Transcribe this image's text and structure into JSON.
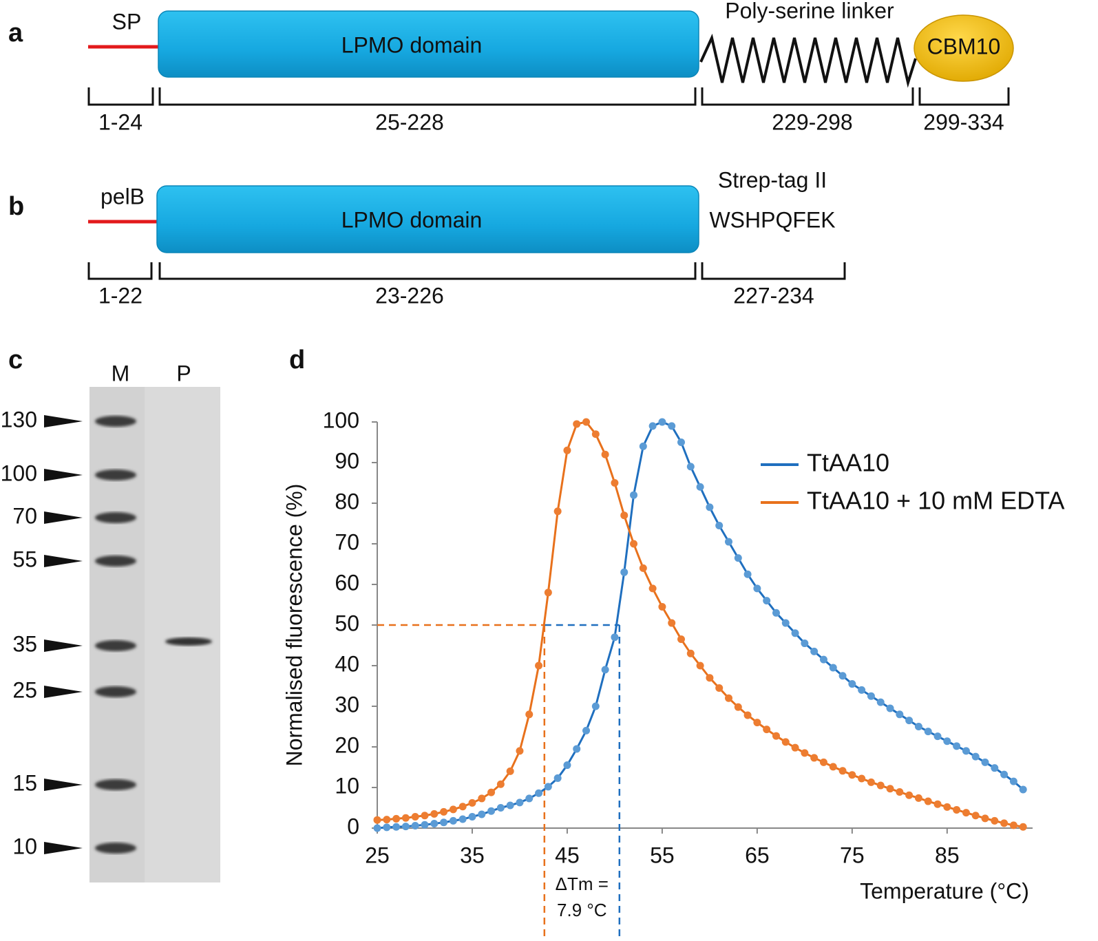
{
  "panel_a": {
    "label": "a",
    "signal": "SP",
    "domain": "LPMO domain",
    "linker": "Poly-serine linker",
    "module": "CBM10",
    "ranges": [
      "1-24",
      "25-228",
      "229-298",
      "299-334"
    ]
  },
  "panel_b": {
    "label": "b",
    "signal": "pelB",
    "domain": "LPMO domain",
    "tag": "Strep-tag II",
    "sequence": "WSHPQFEK",
    "ranges": [
      "1-22",
      "23-226",
      "227-234"
    ]
  },
  "panel_c": {
    "label": "c",
    "lanes": [
      "M",
      "P"
    ],
    "markers": [
      130,
      100,
      70,
      55,
      35,
      25,
      15,
      10
    ]
  },
  "panel_d": {
    "label": "d"
  },
  "chart_data": {
    "type": "line",
    "x_label": "Temperature (°C)",
    "y_label": "Normalised fluorescence (%)",
    "x": [
      25,
      26,
      27,
      28,
      29,
      30,
      31,
      32,
      33,
      34,
      35,
      36,
      37,
      38,
      39,
      40,
      41,
      42,
      43,
      44,
      45,
      46,
      47,
      48,
      49,
      50,
      51,
      52,
      53,
      54,
      55,
      56,
      57,
      58,
      59,
      60,
      61,
      62,
      63,
      64,
      65,
      66,
      67,
      68,
      69,
      70,
      71,
      72,
      73,
      74,
      75,
      76,
      77,
      78,
      79,
      80,
      81,
      82,
      83,
      84,
      85,
      86,
      87,
      88,
      89,
      90,
      91,
      92,
      93
    ],
    "series": [
      {
        "name": "TtAA10",
        "color": "#1f6fbf",
        "marker_color": "#5b9bd5",
        "values": [
          0,
          0.2,
          0.3,
          0.4,
          0.6,
          0.8,
          1.1,
          1.4,
          1.8,
          2.2,
          2.8,
          3.4,
          4.2,
          5.0,
          5.6,
          6.3,
          7.3,
          8.6,
          10.2,
          12.3,
          15.5,
          19.5,
          24,
          30,
          39,
          47,
          63,
          82,
          94,
          99,
          100,
          99,
          95,
          89,
          84,
          79,
          74.5,
          70.5,
          66.5,
          62.5,
          59,
          56,
          53,
          50.5,
          48,
          45.5,
          43.5,
          41.5,
          39.5,
          37.5,
          35.5,
          34,
          32.5,
          31,
          29.5,
          28,
          26.5,
          25,
          23.8,
          22.6,
          21.4,
          20.2,
          19,
          17.6,
          16.2,
          14.8,
          13.2,
          11.5,
          9.5
        ]
      },
      {
        "name": "TtAA10 + 10 mM EDTA",
        "color": "#e8711c",
        "marker_color": "#ed7d31",
        "values": [
          2,
          2.1,
          2.3,
          2.5,
          2.8,
          3.1,
          3.5,
          4.0,
          4.6,
          5.3,
          6.2,
          7.3,
          8.8,
          10.8,
          14,
          19,
          28,
          40,
          58,
          78,
          93,
          99.5,
          100,
          97,
          92,
          85,
          77,
          70,
          64,
          59,
          54.5,
          50.5,
          46.5,
          43,
          40,
          37,
          34.5,
          32,
          29.8,
          27.8,
          26,
          24.3,
          22.7,
          21.2,
          19.8,
          18.5,
          17.3,
          16.2,
          15.1,
          14.1,
          13.1,
          12.2,
          11.3,
          10.5,
          9.7,
          8.9,
          8.1,
          7.4,
          6.6,
          5.9,
          5.2,
          4.5,
          3.8,
          3.1,
          2.4,
          1.8,
          1.2,
          0.7,
          0.3
        ]
      }
    ],
    "xlim": [
      25,
      94
    ],
    "ylim": [
      0,
      100
    ],
    "xticks": [
      25,
      35,
      45,
      55,
      65,
      75,
      85
    ],
    "yticks": [
      0,
      10,
      20,
      30,
      40,
      50,
      60,
      70,
      80,
      90,
      100
    ],
    "grid": false,
    "legend": "upper right",
    "reference": {
      "y": 50,
      "x": [
        42.6,
        50.5
      ]
    },
    "annotation": [
      "ΔTm =",
      "7.9 °C"
    ]
  }
}
